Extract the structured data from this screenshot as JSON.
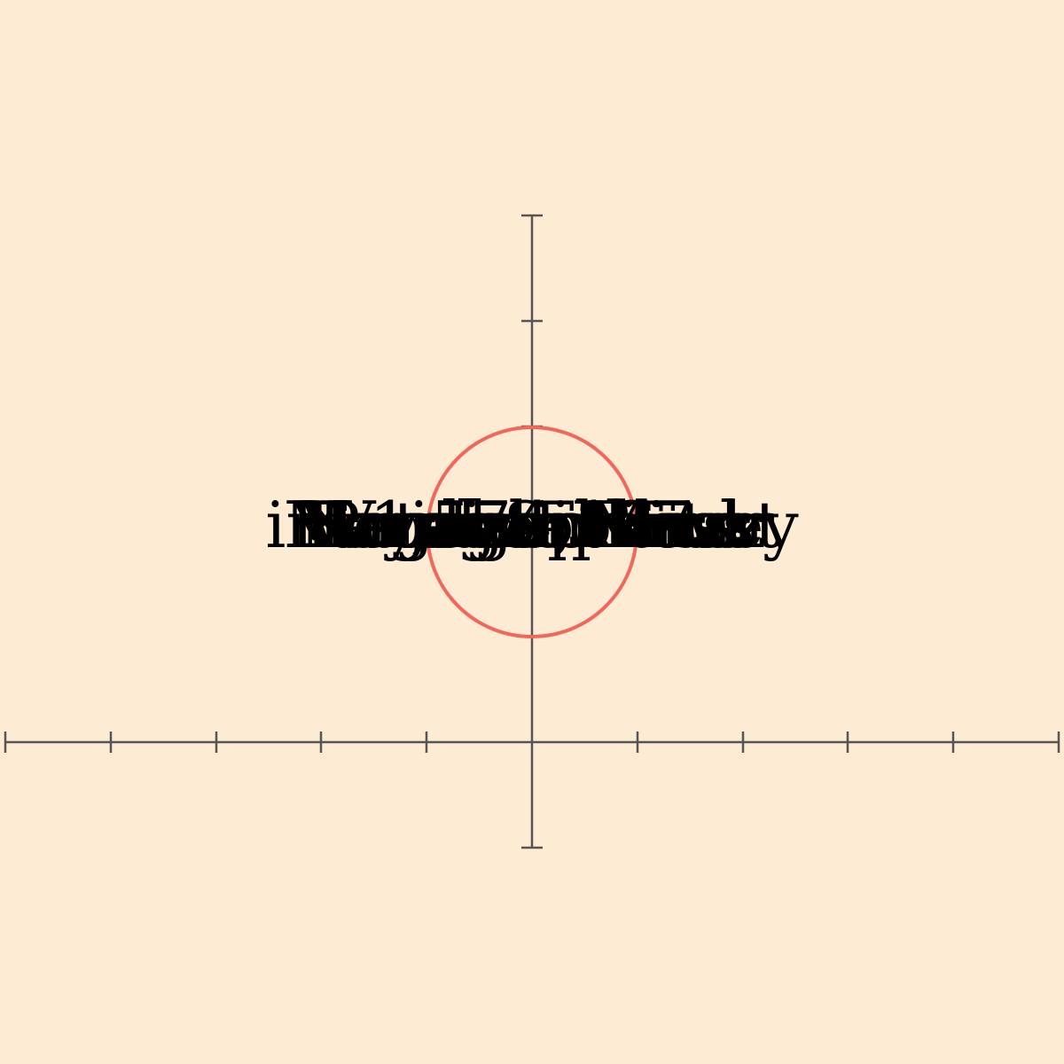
{
  "colors": {
    "background": "#feebd4",
    "axis": "#555555",
    "circle": "#f2665b",
    "label": "#000000"
  },
  "labels": [
    "Variable Blaze",
    "Notebook Fizz",
    "1,574,127",
    "Paragon Pine",
    "Vanta Ethics",
    "Engage Hawk",
    "interdisciplinary",
    "Lunar Sprinter",
    "Voyager Mask",
    "Magnetic Frost"
  ]
}
